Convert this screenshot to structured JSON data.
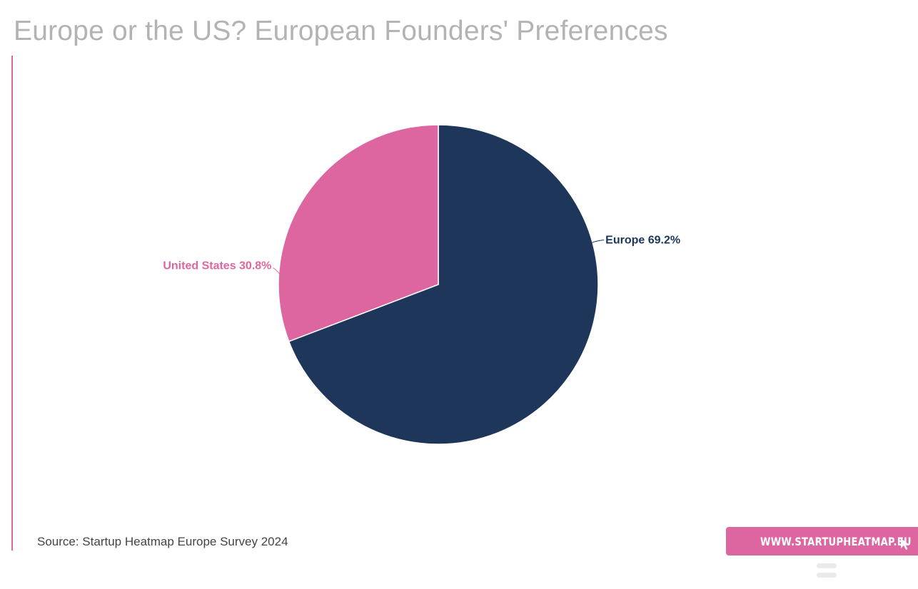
{
  "title": "Europe or the US? European Founders' Preferences",
  "source": "Source: Startup Heatmap Europe Survey 2024",
  "site_link": {
    "label": "WWW.STARTUPHEATMAP.EU",
    "icon": "cursor-icon"
  },
  "colors": {
    "accent": "#dd66a0",
    "europe": "#1e3659",
    "us": "#dd66a0",
    "title": "#b3b3b3"
  },
  "chart_data": {
    "type": "pie",
    "title": "Europe or the US? European Founders' Preferences",
    "slices": [
      {
        "label": "Europe",
        "value": 69.2,
        "display": "Europe 69.2%",
        "color": "#1e3659"
      },
      {
        "label": "United States",
        "value": 30.8,
        "display": "United States 30.8%",
        "color": "#dd66a0"
      }
    ],
    "start_angle": "12 o'clock",
    "direction": "clockwise",
    "labels": "outside with leader lines"
  }
}
